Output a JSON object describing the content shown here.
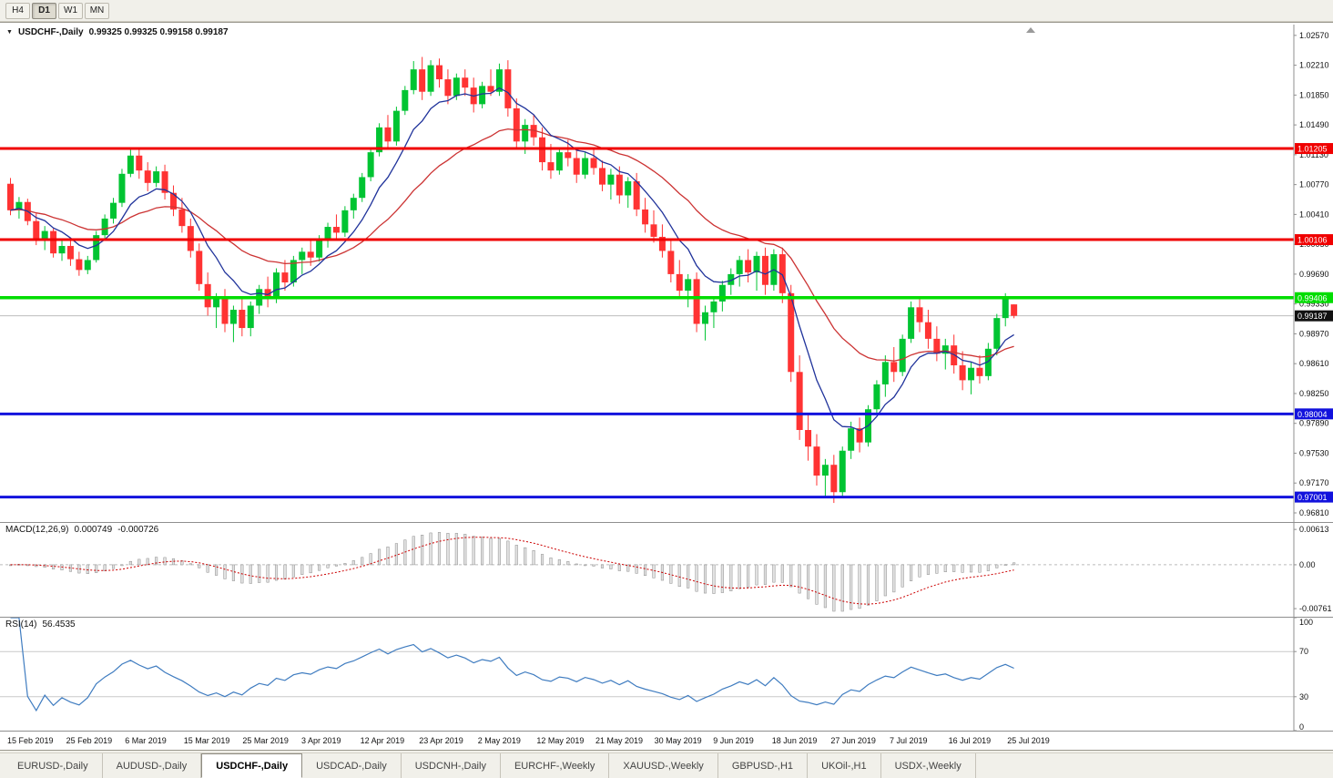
{
  "toolbar": {
    "timeframes": [
      "H4",
      "D1",
      "W1",
      "MN"
    ],
    "active_index": 1
  },
  "ui": {
    "header": {
      "dropdown_icon": "▼",
      "symbol": "USDCHF-,Daily",
      "ohlc_text": "0.99325 0.99325 0.99158 0.99187"
    }
  },
  "indicators": {
    "macd": {
      "name": "MACD(12,26,9)",
      "main": "0.000749",
      "signal": "-0.000726",
      "ticks": [
        "0.00613",
        "0.00",
        "-0.00761"
      ]
    },
    "rsi": {
      "name": "RSI(14)",
      "value": "56.4535",
      "ticks": [
        "100",
        "70",
        "30",
        "0"
      ],
      "bands": [
        70,
        30
      ]
    }
  },
  "tabs": {
    "items": [
      "EURUSD-,Daily",
      "AUDUSD-,Daily",
      "USDCHF-,Daily",
      "USDCAD-,Daily",
      "USDCNH-,Daily",
      "EURCHF-,Weekly",
      "XAUUSD-,Weekly",
      "GBPUSD-,H1",
      "UKOil-,H1",
      "USDX-,Weekly"
    ],
    "active_index": 2
  },
  "chart_data": {
    "type": "candlestick",
    "symbol": "USDCHF",
    "timeframe": "Daily",
    "ylim": [
      0.967,
      1.027
    ],
    "y_ticks": [
      "1.02570",
      "1.02210",
      "1.01850",
      "1.01490",
      "1.01130",
      "1.00770",
      "1.00410",
      "1.00050",
      "0.99690",
      "0.99330",
      "0.98970",
      "0.98610",
      "0.98250",
      "0.97890",
      "0.97530",
      "0.97170",
      "0.96810"
    ],
    "x_labels": [
      "15 Feb 2019",
      "25 Feb 2019",
      "6 Mar 2019",
      "15 Mar 2019",
      "25 Mar 2019",
      "3 Apr 2019",
      "12 Apr 2019",
      "23 Apr 2019",
      "2 May 2019",
      "12 May 2019",
      "21 May 2019",
      "30 May 2019",
      "9 Jun 2019",
      "18 Jun 2019",
      "27 Jun 2019",
      "7 Jul 2019",
      "16 Jul 2019",
      "25 Jul 2019"
    ],
    "levels": [
      {
        "price": 1.01205,
        "label": "1.01205",
        "color": "#f00000",
        "width": 3
      },
      {
        "price": 1.00106,
        "label": "1.00106",
        "color": "#f00000",
        "width": 3
      },
      {
        "price": 0.99406,
        "label": "0.99406",
        "color": "#00dd00",
        "width": 3.5
      },
      {
        "price": 0.98004,
        "label": "0.98004",
        "color": "#1212dd",
        "width": 3
      },
      {
        "price": 0.97001,
        "label": "0.97001",
        "color": "#1212dd",
        "width": 3
      }
    ],
    "current_price": 0.99187,
    "current_price_label": "0.99187",
    "ma": {
      "fast_period": 8,
      "slow_period": 24
    },
    "colors": {
      "bull": "#00c432",
      "bear": "#ff3333",
      "ma_fast": "#20339b",
      "ma_slow": "#cc3333",
      "macd_signal": "#cc0000",
      "rsi": "#3f7cc0",
      "histogram_fill": "#e2e2e2",
      "histogram_border": "#8c8c8c"
    },
    "candles": [
      [
        1.0078,
        1.0085,
        1.004,
        1.0046
      ],
      [
        1.0046,
        1.0062,
        1.0036,
        1.0056
      ],
      [
        1.0056,
        1.006,
        1.0028,
        1.0033
      ],
      [
        1.0033,
        1.0042,
        1.0004,
        1.001
      ],
      [
        1.001,
        1.0027,
        0.9998,
        1.0021
      ],
      [
        1.0021,
        1.0024,
        0.9989,
        0.9994
      ],
      [
        0.9994,
        1.0012,
        0.9985,
        1.0003
      ],
      [
        1.0003,
        1.001,
        0.9979,
        0.9987
      ],
      [
        0.9987,
        0.9996,
        0.9967,
        0.9974
      ],
      [
        0.9974,
        0.9991,
        0.9969,
        0.9986
      ],
      [
        0.9986,
        1.0021,
        0.9983,
        1.0016
      ],
      [
        1.0016,
        1.0041,
        1.0011,
        1.0036
      ],
      [
        1.0036,
        1.0061,
        1.003,
        1.0055
      ],
      [
        1.0055,
        1.0096,
        1.005,
        1.009
      ],
      [
        1.009,
        1.0121,
        1.0086,
        1.0112
      ],
      [
        1.0112,
        1.0119,
        1.0084,
        1.0094
      ],
      [
        1.0094,
        1.0104,
        1.0069,
        1.0079
      ],
      [
        1.0079,
        1.0099,
        1.0074,
        1.0093
      ],
      [
        1.0093,
        1.0101,
        1.0059,
        1.0067
      ],
      [
        1.0067,
        1.0076,
        1.0039,
        1.0047
      ],
      [
        1.0047,
        1.0061,
        1.0019,
        1.0027
      ],
      [
        1.0027,
        1.0036,
        0.9989,
        0.9997
      ],
      [
        0.9997,
        1.0006,
        0.9949,
        0.9957
      ],
      [
        0.9957,
        0.9971,
        0.9919,
        0.9929
      ],
      [
        0.9929,
        0.9946,
        0.9904,
        0.9939
      ],
      [
        0.9939,
        0.9951,
        0.9899,
        0.9909
      ],
      [
        0.9909,
        0.9931,
        0.9887,
        0.9926
      ],
      [
        0.9926,
        0.9941,
        0.9894,
        0.9904
      ],
      [
        0.9904,
        0.9936,
        0.9894,
        0.9931
      ],
      [
        0.9931,
        0.9956,
        0.9921,
        0.9951
      ],
      [
        0.9951,
        0.9966,
        0.9929,
        0.9939
      ],
      [
        0.9939,
        0.9976,
        0.9934,
        0.9971
      ],
      [
        0.9971,
        0.9986,
        0.9949,
        0.9959
      ],
      [
        0.9959,
        0.9991,
        0.9954,
        0.9986
      ],
      [
        0.9986,
        1.0001,
        0.9969,
        0.9996
      ],
      [
        0.9996,
        1.0011,
        0.9979,
        0.9989
      ],
      [
        0.9989,
        1.0016,
        0.9984,
        1.0011
      ],
      [
        1.0011,
        1.0031,
        1.0001,
        1.0026
      ],
      [
        1.0026,
        1.0041,
        1.0009,
        1.0019
      ],
      [
        1.0019,
        1.0051,
        1.0014,
        1.0046
      ],
      [
        1.0046,
        1.0066,
        1.0036,
        1.0061
      ],
      [
        1.0061,
        1.0091,
        1.0056,
        1.0086
      ],
      [
        1.0086,
        1.0121,
        1.0081,
        1.0116
      ],
      [
        1.0116,
        1.0151,
        1.0111,
        1.0146
      ],
      [
        1.0146,
        1.0161,
        1.0119,
        1.0129
      ],
      [
        1.0129,
        1.0171,
        1.0124,
        1.0166
      ],
      [
        1.0166,
        1.0196,
        1.0161,
        1.0191
      ],
      [
        1.0191,
        1.0226,
        1.0186,
        1.0216
      ],
      [
        1.0216,
        1.0231,
        1.0179,
        1.0189
      ],
      [
        1.0189,
        1.0227,
        1.0184,
        1.0221
      ],
      [
        1.0221,
        1.0229,
        1.0194,
        1.0204
      ],
      [
        1.0204,
        1.0216,
        1.0174,
        1.0184
      ],
      [
        1.0184,
        1.0211,
        1.0179,
        1.0206
      ],
      [
        1.0206,
        1.0216,
        1.0184,
        1.0194
      ],
      [
        1.0194,
        1.0206,
        1.0164,
        1.0174
      ],
      [
        1.0174,
        1.0201,
        1.0169,
        1.0196
      ],
      [
        1.0196,
        1.0216,
        1.0184,
        1.0189
      ],
      [
        1.0189,
        1.0223,
        1.0184,
        1.0216
      ],
      [
        1.0216,
        1.0227,
        1.0159,
        1.0169
      ],
      [
        1.0169,
        1.0181,
        1.0119,
        1.0129
      ],
      [
        1.0129,
        1.0156,
        1.0114,
        1.0149
      ],
      [
        1.0149,
        1.0161,
        1.0124,
        1.0134
      ],
      [
        1.0134,
        1.0146,
        1.0094,
        1.0104
      ],
      [
        1.0104,
        1.0126,
        1.0084,
        1.0094
      ],
      [
        1.0094,
        1.0121,
        1.0089,
        1.0116
      ],
      [
        1.0116,
        1.0131,
        1.0099,
        1.0109
      ],
      [
        1.0109,
        1.0121,
        1.0079,
        1.0089
      ],
      [
        1.0089,
        1.0116,
        1.0084,
        1.0109
      ],
      [
        1.0109,
        1.0119,
        1.0089,
        1.0097
      ],
      [
        1.0097,
        1.0106,
        1.0069,
        1.0077
      ],
      [
        1.0077,
        1.0096,
        1.0059,
        1.0089
      ],
      [
        1.0089,
        1.0099,
        1.0054,
        1.0064
      ],
      [
        1.0064,
        1.0086,
        1.0049,
        1.0081
      ],
      [
        1.0081,
        1.0091,
        1.0039,
        1.0047
      ],
      [
        1.0047,
        1.0061,
        1.0019,
        1.0029
      ],
      [
        1.0029,
        1.0046,
        1.0007,
        1.0014
      ],
      [
        1.0014,
        1.0029,
        0.9989,
        0.9997
      ],
      [
        0.9997,
        1.0011,
        0.9959,
        0.9969
      ],
      [
        0.9969,
        0.9986,
        0.9939,
        0.9949
      ],
      [
        0.9949,
        0.9969,
        0.9929,
        0.9963
      ],
      [
        0.9963,
        0.9971,
        0.9899,
        0.9909
      ],
      [
        0.9909,
        0.9931,
        0.9889,
        0.9923
      ],
      [
        0.9923,
        0.9941,
        0.9904,
        0.9936
      ],
      [
        0.9936,
        0.9961,
        0.9924,
        0.9956
      ],
      [
        0.9956,
        0.9976,
        0.9944,
        0.9969
      ],
      [
        0.9969,
        0.9991,
        0.9954,
        0.9986
      ],
      [
        0.9986,
        0.9999,
        0.9959,
        0.9971
      ],
      [
        0.9971,
        0.9996,
        0.9949,
        0.9991
      ],
      [
        0.9991,
        1.0001,
        0.9944,
        0.9956
      ],
      [
        0.9956,
        0.9999,
        0.9949,
        0.9993
      ],
      [
        0.9993,
        1.0001,
        0.9934,
        0.9946
      ],
      [
        0.9946,
        0.9956,
        0.9839,
        0.9851
      ],
      [
        0.9851,
        0.9871,
        0.9769,
        0.9781
      ],
      [
        0.9781,
        0.9801,
        0.9744,
        0.9761
      ],
      [
        0.9761,
        0.9776,
        0.9714,
        0.9726
      ],
      [
        0.9726,
        0.9746,
        0.9699,
        0.9739
      ],
      [
        0.9739,
        0.9751,
        0.9693,
        0.9706
      ],
      [
        0.9706,
        0.9761,
        0.9701,
        0.9756
      ],
      [
        0.9756,
        0.9791,
        0.9746,
        0.9783
      ],
      [
        0.9783,
        0.9796,
        0.9754,
        0.9766
      ],
      [
        0.9766,
        0.9811,
        0.9761,
        0.9806
      ],
      [
        0.9806,
        0.9841,
        0.9801,
        0.9836
      ],
      [
        0.9836,
        0.9871,
        0.9821,
        0.9863
      ],
      [
        0.9863,
        0.9881,
        0.9839,
        0.9851
      ],
      [
        0.9851,
        0.9896,
        0.9846,
        0.9891
      ],
      [
        0.9891,
        0.9936,
        0.9886,
        0.9929
      ],
      [
        0.9929,
        0.9941,
        0.9899,
        0.9911
      ],
      [
        0.9911,
        0.9926,
        0.9879,
        0.9891
      ],
      [
        0.9891,
        0.9906,
        0.9864,
        0.9873
      ],
      [
        0.9873,
        0.9891,
        0.9854,
        0.9883
      ],
      [
        0.9883,
        0.9896,
        0.9849,
        0.9859
      ],
      [
        0.9859,
        0.9876,
        0.9829,
        0.9841
      ],
      [
        0.9841,
        0.9863,
        0.9824,
        0.9856
      ],
      [
        0.9856,
        0.9871,
        0.9837,
        0.9846
      ],
      [
        0.9846,
        0.9886,
        0.9841,
        0.9879
      ],
      [
        0.9879,
        0.9921,
        0.9871,
        0.9916
      ],
      [
        0.9916,
        0.9946,
        0.9906,
        0.9939
      ],
      [
        0.99325,
        0.99325,
        0.99158,
        0.99187
      ]
    ]
  }
}
